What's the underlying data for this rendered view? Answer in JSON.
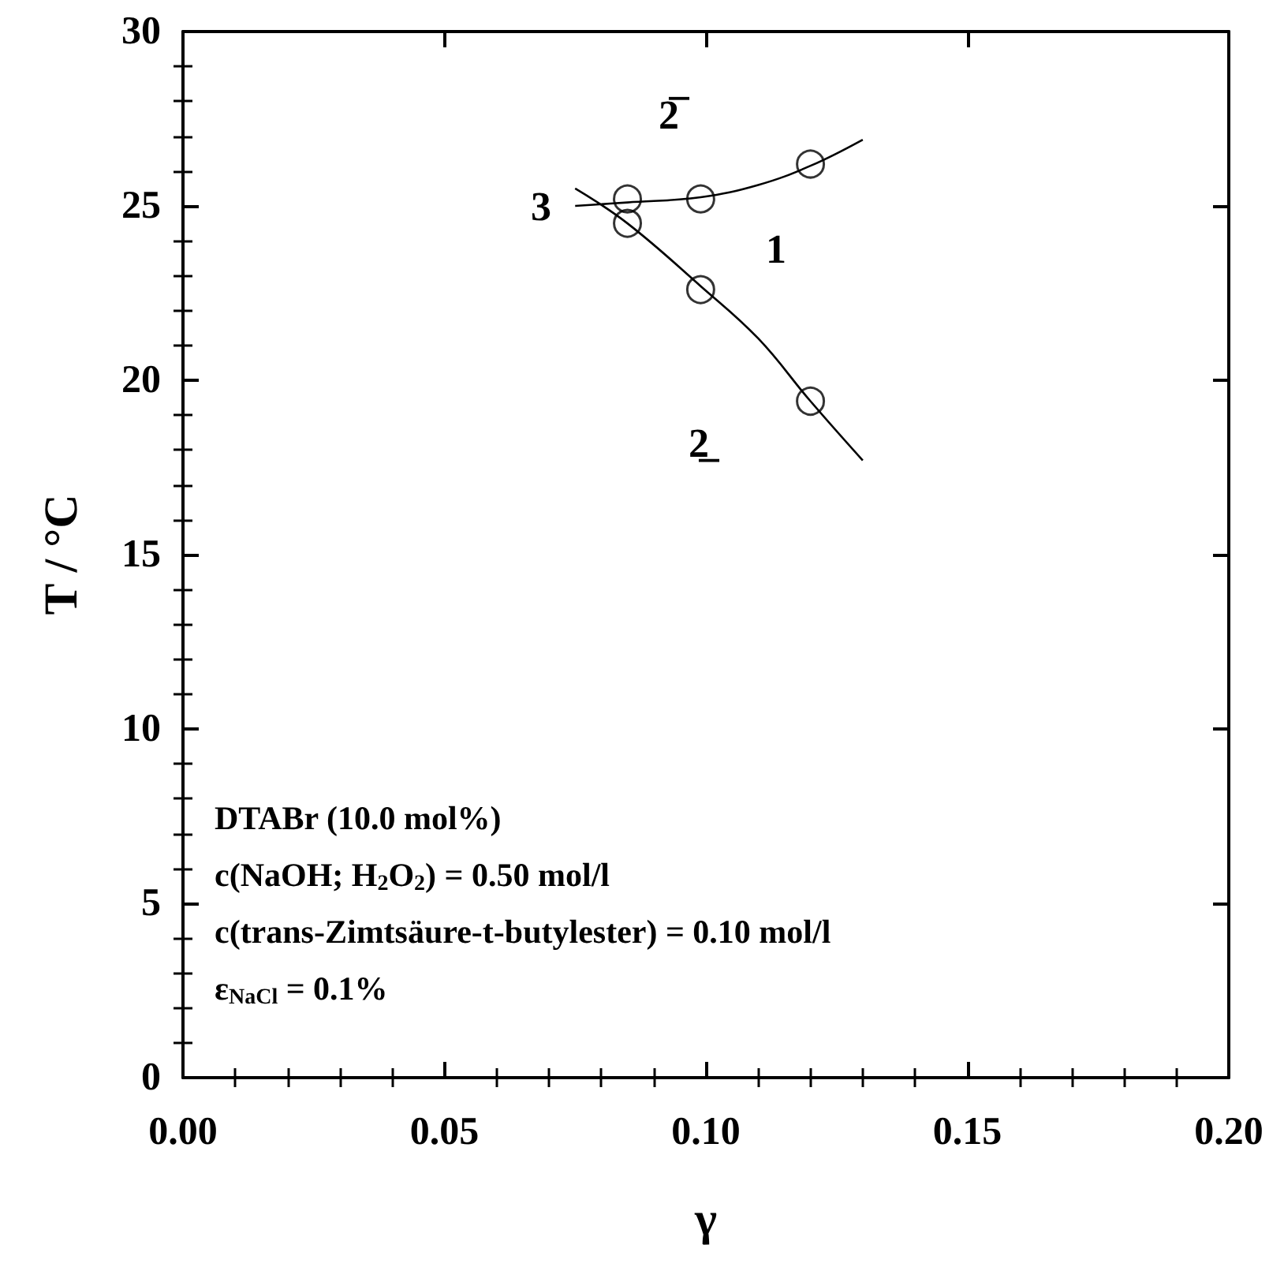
{
  "chart_data": {
    "type": "scatter",
    "xlabel": "γ",
    "ylabel": "T / °C",
    "xlim": [
      0,
      0.2
    ],
    "xticks": [
      {
        "value": 0,
        "label": "0.00"
      },
      {
        "value": 0.05,
        "label": "0.05"
      },
      {
        "value": 0.1,
        "label": "0.10"
      },
      {
        "value": 0.15,
        "label": "0.15"
      },
      {
        "value": 0.2,
        "label": "0.20"
      }
    ],
    "ylim": [
      0,
      30
    ],
    "yticks": [
      0,
      5,
      10,
      15,
      20,
      25,
      30
    ],
    "grid": false,
    "series": [
      {
        "marker": "circle",
        "color": "#000000",
        "x": [
          0.085,
          0.099,
          0.12
        ],
        "values": [
          25.2,
          25.2,
          26.2
        ]
      },
      {
        "marker": "circle",
        "color": "#000000",
        "x": [
          0.085,
          0.099,
          0.12
        ],
        "values": [
          24.5,
          22.6,
          19.4
        ]
      },
      {
        "type": "line",
        "marker": "none",
        "color": "#000000",
        "x": [
          0.075,
          0.085,
          0.099,
          0.11,
          0.12,
          0.13
        ],
        "values": [
          25.0,
          25.1,
          25.25,
          25.6,
          26.15,
          26.9
        ]
      },
      {
        "type": "line",
        "marker": "none",
        "color": "#000000",
        "x": [
          0.075,
          0.085,
          0.099,
          0.11,
          0.12,
          0.13
        ],
        "values": [
          25.5,
          24.5,
          22.7,
          21.2,
          19.4,
          17.7
        ]
      }
    ],
    "annotations": [
      "2̅",
      "3",
      "1",
      "2̲",
      "DTABr (10.0 mol%)",
      "c(NaOH; H$_{2}$O$_{2}$) = 0.50 mol/l",
      "c(trans-Zimtsäure-t-butylester) = 0.10 mol/l",
      "ε$_{NaCl}$ = 0.1%"
    ]
  }
}
